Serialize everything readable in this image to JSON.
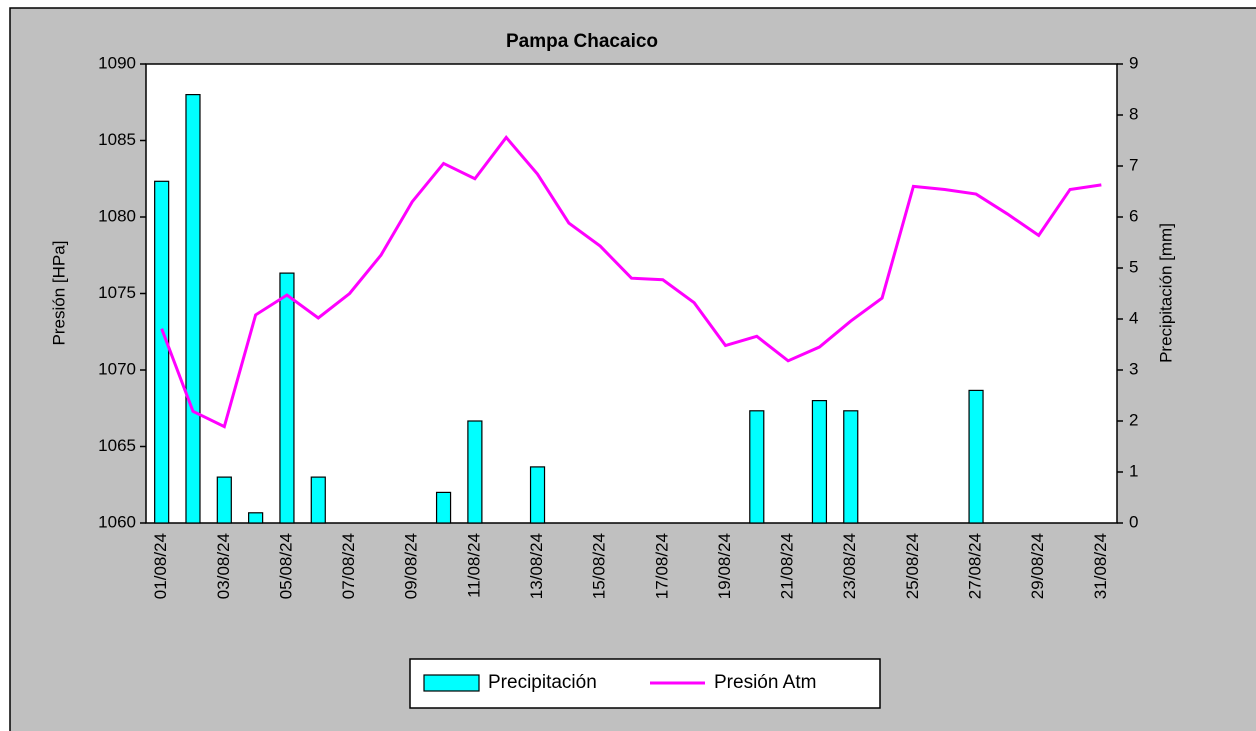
{
  "chart_data": {
    "type": "bar_line",
    "title": "Pampa Chacaico",
    "categories": [
      "01/08/24",
      null,
      "03/08/24",
      null,
      "05/08/24",
      null,
      "07/08/24",
      null,
      "09/08/24",
      null,
      "11/08/24",
      null,
      "13/08/24",
      null,
      "15/08/24",
      null,
      "17/08/24",
      null,
      "19/08/24",
      null,
      "21/08/24",
      null,
      "23/08/24",
      null,
      "25/08/24",
      null,
      "27/08/24",
      null,
      "29/08/24",
      null,
      "31/08/24"
    ],
    "ylabel": "Presión [HPa]",
    "y2label": "Precipitación [mm]",
    "ylim": [
      1060,
      1090
    ],
    "yticks": [
      1060,
      1065,
      1070,
      1075,
      1080,
      1085,
      1090
    ],
    "y2lim": [
      0,
      9
    ],
    "y2ticks": [
      0,
      1,
      2,
      3,
      4,
      5,
      6,
      7,
      8,
      9
    ],
    "legend": "bottom",
    "series": [
      {
        "name": "Precipitación",
        "type": "bar",
        "axis": "y2",
        "color": "#00ffff",
        "values": [
          6.7,
          8.4,
          0.9,
          0.2,
          4.9,
          0.9,
          0,
          0,
          0,
          0.6,
          2.0,
          0,
          1.1,
          0,
          0,
          0,
          0,
          0,
          0,
          2.2,
          0,
          2.4,
          2.2,
          0,
          0,
          0,
          2.6,
          0,
          0,
          0,
          0
        ]
      },
      {
        "name": "Presión Atm",
        "type": "line",
        "color": "#ff00ff",
        "values": [
          1072.7,
          1067.3,
          1066.3,
          1073.6,
          1074.9,
          1073.4,
          1075.0,
          1077.5,
          1081.0,
          1083.5,
          1082.5,
          1085.2,
          1082.8,
          1079.6,
          1078.1,
          1076.0,
          1075.9,
          1074.4,
          1071.6,
          1072.2,
          1070.6,
          1071.5,
          1073.2,
          1074.7,
          1082.0,
          1081.8,
          1081.5,
          1080.2,
          1078.8,
          1081.8,
          1082.1
        ]
      }
    ]
  }
}
